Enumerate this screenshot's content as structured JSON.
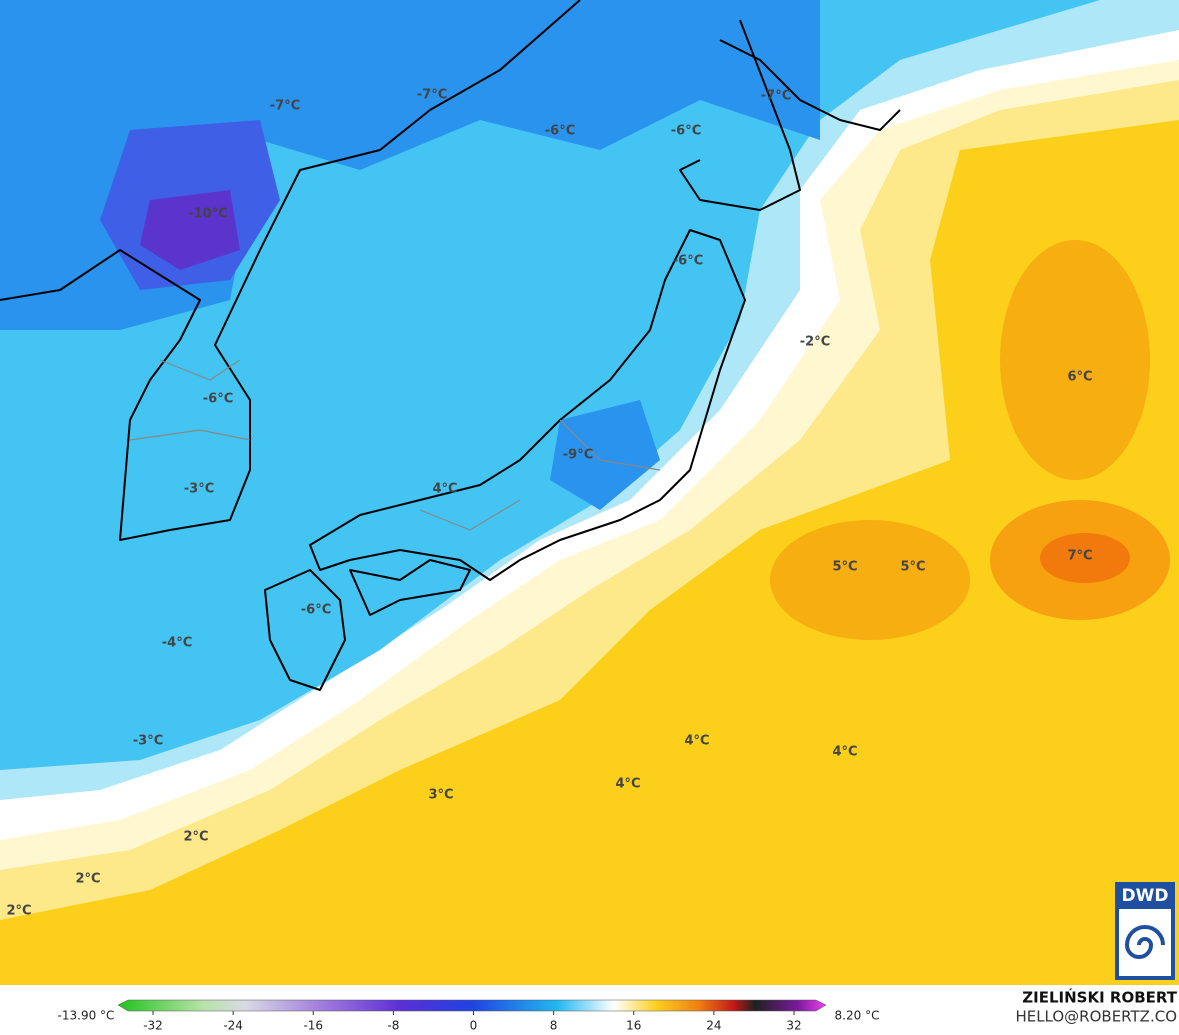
{
  "map": {
    "labels": [
      "-7°C",
      "-7°C",
      "-6°C",
      "-6°C",
      "-7°C",
      "-10°C",
      "-6°C",
      "-2°C",
      "6°C",
      "-6°C",
      "-9°C",
      "4°C",
      "-3°C",
      "5°C",
      "5°C",
      "7°C",
      "-6°C",
      "-4°C",
      "-3°C",
      "4°C",
      "4°C",
      "4°C",
      "3°C",
      "2°C",
      "2°C",
      "2°C"
    ]
  },
  "colorbar": {
    "min_label": "-13.90 °C",
    "max_label": "8.20 °C",
    "ticks": [
      -32,
      -24,
      -16,
      -8,
      0,
      8,
      16,
      24,
      32
    ]
  },
  "credits": {
    "author": "ZIELIŃSKI ROBERT",
    "contact": "HELLO@ROBERTZ.CO"
  },
  "logo": "DWD"
}
